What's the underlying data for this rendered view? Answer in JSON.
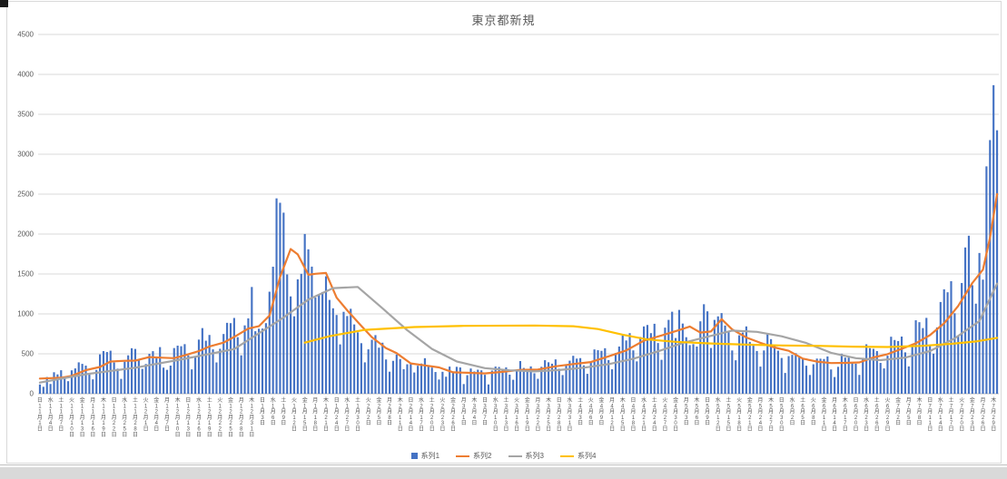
{
  "chart_data": {
    "type": "bar",
    "title": "東京都新規",
    "ylim": [
      0,
      4500
    ],
    "ytick_step": 500,
    "grid": true,
    "legend_position": "bottom",
    "legend": [
      "系列1",
      "系列2",
      "系列3",
      "系列4"
    ],
    "colors": {
      "series1": "#4472c4",
      "series2": "#ed7d31",
      "series3": "#a5a5a5",
      "series4": "#ffc000",
      "grid": "#d9d9d9",
      "axis": "#bfbfbf",
      "axis_text": "#595959",
      "title_text": "#595959"
    },
    "x_axis": {
      "weekdays": [
        "日",
        "月",
        "火",
        "水",
        "木",
        "金",
        "土"
      ],
      "start_weekday_index": 0,
      "month_suffix": "月",
      "day_suffix": "日",
      "tick_every_days": 3,
      "months": [
        {
          "m": 11,
          "days": 30
        },
        {
          "m": 12,
          "days": 31
        },
        {
          "m": 1,
          "days": 31
        },
        {
          "m": 2,
          "days": 28
        },
        {
          "m": 3,
          "days": 31
        },
        {
          "m": 4,
          "days": 30
        },
        {
          "m": 5,
          "days": 31
        },
        {
          "m": 6,
          "days": 30
        },
        {
          "m": 7,
          "days": 30
        }
      ]
    },
    "series1_daily": [
      116,
      87,
      209,
      122,
      269,
      242,
      294,
      189,
      157,
      293,
      317,
      393,
      374,
      352,
      255,
      180,
      298,
      493,
      534,
      522,
      539,
      391,
      314,
      186,
      401,
      481,
      570,
      561,
      418,
      311,
      372,
      500,
      533,
      449,
      584,
      327,
      299,
      352,
      572,
      602,
      595,
      621,
      480,
      305,
      460,
      678,
      822,
      664,
      736,
      556,
      392,
      563,
      748,
      888,
      884,
      949,
      708,
      481,
      856,
      944,
      1337,
      783,
      814,
      816,
      884,
      1278,
      1591,
      2447,
      2392,
      2268,
      1494,
      1219,
      970,
      1433,
      1502,
      2001,
      1809,
      1592,
      1204,
      1240,
      1274,
      1471,
      1175,
      1070,
      986,
      618,
      1026,
      973,
      1064,
      868,
      769,
      633,
      393,
      556,
      676,
      734,
      577,
      639,
      429,
      276,
      412,
      491,
      434,
      307,
      369,
      371,
      266,
      350,
      378,
      445,
      353,
      327,
      272,
      178,
      275,
      213,
      340,
      270,
      337,
      329,
      121,
      232,
      316,
      279,
      301,
      293,
      237,
      116,
      290,
      340,
      335,
      304,
      330,
      239,
      175,
      300,
      409,
      323,
      303,
      342,
      256,
      187,
      337,
      420,
      394,
      376,
      430,
      313,
      234,
      364,
      414,
      475,
      440,
      446,
      355,
      249,
      399,
      555,
      545,
      537,
      570,
      421,
      306,
      510,
      591,
      729,
      667,
      759,
      543,
      405,
      711,
      843,
      861,
      759,
      876,
      635,
      425,
      828,
      925,
      1027,
      698,
      1050,
      879,
      708,
      609,
      621,
      591,
      907,
      1121,
      1032,
      573,
      925,
      969,
      1010,
      854,
      772,
      542,
      419,
      732,
      766,
      843,
      649,
      602,
      535,
      340,
      542,
      743,
      684,
      614,
      539,
      448,
      260,
      471,
      487,
      508,
      472,
      436,
      351,
      235,
      369,
      440,
      439,
      435,
      467,
      304,
      209,
      337,
      501,
      452,
      453,
      388,
      376,
      236,
      435,
      619,
      570,
      562,
      534,
      386,
      317,
      476,
      714,
      673,
      660,
      716,
      518,
      342,
      593,
      920,
      896,
      822,
      950,
      614,
      502,
      830,
      1149,
      1308,
      1271,
      1410,
      1008,
      727,
      1387,
      1832,
      1979,
      1359,
      1128,
      1763,
      1429,
      2848,
      3177,
      3865,
      3300
    ],
    "series2_points": [
      [
        0,
        190
      ],
      [
        6,
        200
      ],
      [
        9,
        224
      ],
      [
        13,
        296
      ],
      [
        17,
        335
      ],
      [
        20,
        403
      ],
      [
        24,
        412
      ],
      [
        27,
        415
      ],
      [
        31,
        459
      ],
      [
        34,
        452
      ],
      [
        38,
        445
      ],
      [
        41,
        481
      ],
      [
        45,
        534
      ],
      [
        48,
        592
      ],
      [
        52,
        640
      ],
      [
        55,
        711
      ],
      [
        59,
        816
      ],
      [
        62,
        846
      ],
      [
        65,
        979
      ],
      [
        68,
        1460
      ],
      [
        71,
        1813
      ],
      [
        73,
        1746
      ],
      [
        76,
        1490
      ],
      [
        78,
        1502
      ],
      [
        81,
        1513
      ],
      [
        84,
        1203
      ],
      [
        87,
        1046
      ],
      [
        91,
        850
      ],
      [
        94,
        708
      ],
      [
        98,
        572
      ],
      [
        101,
        508
      ],
      [
        105,
        380
      ],
      [
        109,
        355
      ],
      [
        113,
        329
      ],
      [
        117,
        268
      ],
      [
        121,
        263
      ],
      [
        126,
        254
      ],
      [
        131,
        274
      ],
      [
        136,
        299
      ],
      [
        141,
        303
      ],
      [
        146,
        343
      ],
      [
        151,
        372
      ],
      [
        156,
        397
      ],
      [
        161,
        468
      ],
      [
        166,
        542
      ],
      [
        171,
        665
      ],
      [
        176,
        730
      ],
      [
        181,
        798
      ],
      [
        184,
        842
      ],
      [
        187,
        766
      ],
      [
        190,
        779
      ],
      [
        193,
        934
      ],
      [
        196,
        806
      ],
      [
        200,
        704
      ],
      [
        204,
        638
      ],
      [
        208,
        580
      ],
      [
        212,
        537
      ],
      [
        216,
        440
      ],
      [
        220,
        402
      ],
      [
        224,
        384
      ],
      [
        228,
        386
      ],
      [
        232,
        392
      ],
      [
        236,
        455
      ],
      [
        240,
        495
      ],
      [
        244,
        563
      ],
      [
        248,
        632
      ],
      [
        252,
        734
      ],
      [
        256,
        882
      ],
      [
        260,
        1100
      ],
      [
        264,
        1386
      ],
      [
        267,
        1554
      ],
      [
        269,
        1955
      ],
      [
        271,
        2501
      ]
    ],
    "series3_points": [
      [
        0,
        140
      ],
      [
        13,
        244
      ],
      [
        27,
        326
      ],
      [
        41,
        438
      ],
      [
        55,
        559
      ],
      [
        69,
        954
      ],
      [
        76,
        1179
      ],
      [
        83,
        1323
      ],
      [
        90,
        1337
      ],
      [
        97,
        1070
      ],
      [
        104,
        795
      ],
      [
        111,
        561
      ],
      [
        118,
        404
      ],
      [
        126,
        320
      ],
      [
        133,
        293
      ],
      [
        140,
        279
      ],
      [
        147,
        297
      ],
      [
        154,
        326
      ],
      [
        161,
        371
      ],
      [
        168,
        439
      ],
      [
        175,
        531
      ],
      [
        182,
        635
      ],
      [
        189,
        714
      ],
      [
        196,
        791
      ],
      [
        203,
        775
      ],
      [
        210,
        719
      ],
      [
        217,
        635
      ],
      [
        224,
        513
      ],
      [
        231,
        445
      ],
      [
        238,
        421
      ],
      [
        245,
        452
      ],
      [
        252,
        534
      ],
      [
        259,
        693
      ],
      [
        266,
        910
      ],
      [
        271,
        1380
      ]
    ],
    "series4_points": [
      [
        75,
        640
      ],
      [
        82,
        720
      ],
      [
        92,
        800
      ],
      [
        106,
        835
      ],
      [
        120,
        850
      ],
      [
        140,
        855
      ],
      [
        151,
        845
      ],
      [
        158,
        810
      ],
      [
        165,
        740
      ],
      [
        172,
        680
      ],
      [
        180,
        650
      ],
      [
        190,
        630
      ],
      [
        200,
        615
      ],
      [
        210,
        605
      ],
      [
        220,
        600
      ],
      [
        230,
        590
      ],
      [
        240,
        585
      ],
      [
        250,
        600
      ],
      [
        258,
        625
      ],
      [
        265,
        655
      ],
      [
        271,
        700
      ]
    ]
  }
}
